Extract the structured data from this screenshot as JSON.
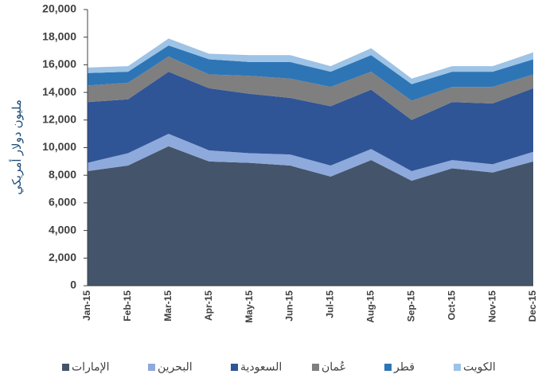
{
  "chart_data": {
    "type": "stacked_area",
    "y_label": "مليون دولار أمريكي",
    "categories": [
      "Jan-15",
      "Feb-15",
      "Mar-15",
      "Apr-15",
      "May-15",
      "Jun-15",
      "Jul-15",
      "Aug-15",
      "Sep-15",
      "Oct-15",
      "Nov-15",
      "Dec-15"
    ],
    "series": [
      {
        "name": "الإمارات",
        "color": "#44546a",
        "values": [
          8300,
          8700,
          10100,
          9000,
          8900,
          8700,
          7900,
          9100,
          7600,
          8500,
          8200,
          9000
        ]
      },
      {
        "name": "البحرين",
        "color": "#8ea9db",
        "values": [
          600,
          900,
          900,
          800,
          700,
          800,
          800,
          800,
          700,
          600,
          600,
          700
        ]
      },
      {
        "name": "السعودية",
        "color": "#2f5597",
        "values": [
          4400,
          3900,
          4500,
          4500,
          4300,
          4100,
          4300,
          4300,
          3700,
          4200,
          4400,
          4600
        ]
      },
      {
        "name": "عُمان",
        "color": "#7f7f7f",
        "values": [
          1200,
          1200,
          1100,
          1000,
          1300,
          1400,
          1400,
          1300,
          1400,
          1100,
          1200,
          1000
        ]
      },
      {
        "name": "قطر",
        "color": "#2e75b6",
        "values": [
          900,
          800,
          800,
          1100,
          1000,
          1200,
          1100,
          1200,
          1200,
          1100,
          1100,
          1100
        ]
      },
      {
        "name": "الكويت",
        "color": "#9dc3e6",
        "values": [
          400,
          400,
          500,
          400,
          500,
          500,
          400,
          500,
          400,
          400,
          400,
          500
        ]
      }
    ],
    "ylim": [
      0,
      20000
    ],
    "yticks": [
      0,
      {
        "value": 2000,
        "label": "2,000"
      },
      {
        "value": 4000,
        "label": "4,000"
      },
      {
        "value": 6000,
        "label": "6,000"
      },
      {
        "value": 8000,
        "label": "8,000"
      },
      {
        "value": 10000,
        "label": "10,000"
      },
      {
        "value": 12000,
        "label": "12,000"
      },
      {
        "value": 14000,
        "label": "14,000"
      },
      {
        "value": 16000,
        "label": "16,000"
      },
      {
        "value": 18000,
        "label": "18,000"
      },
      {
        "value": 20000,
        "label": "20,000"
      }
    ],
    "grid": false
  }
}
